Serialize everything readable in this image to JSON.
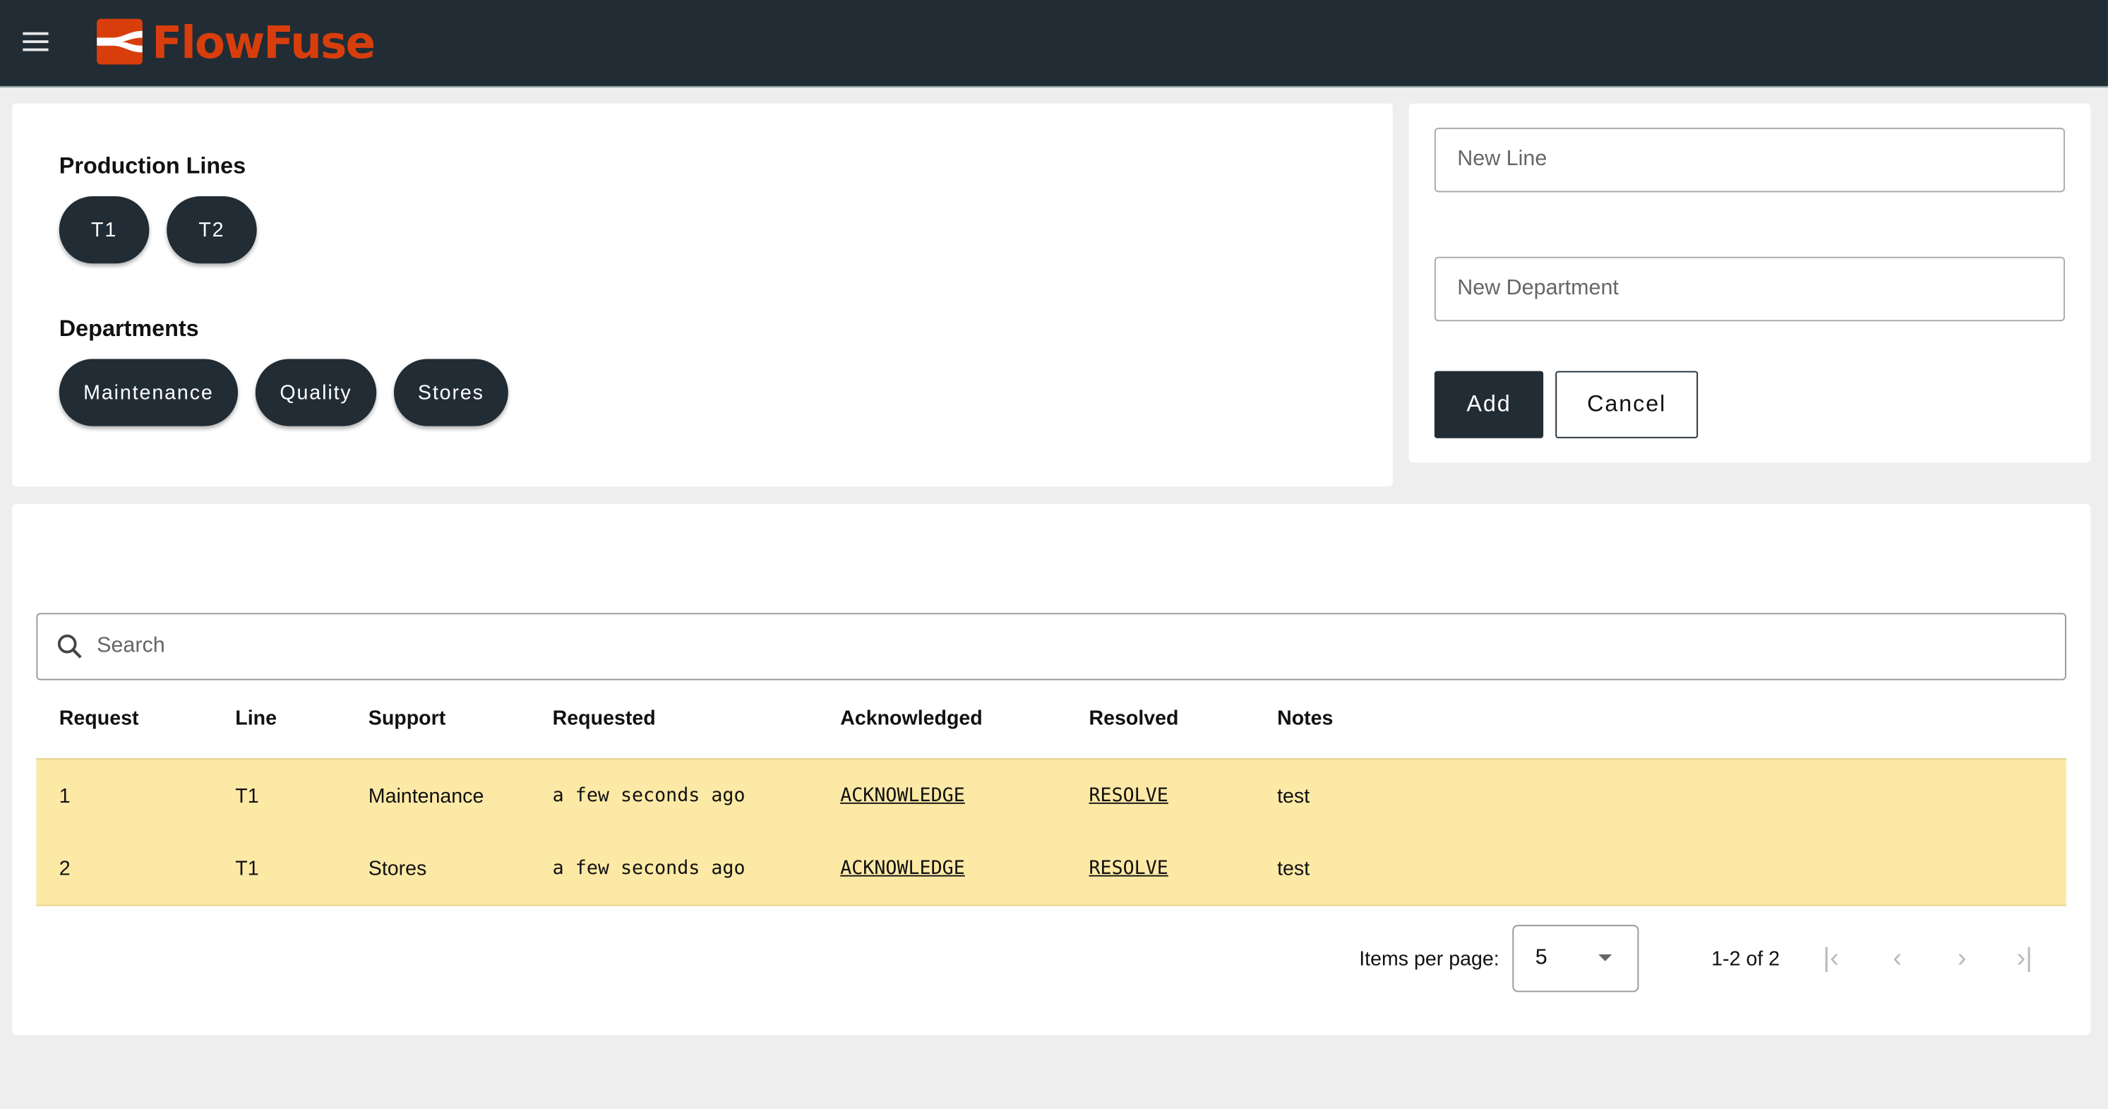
{
  "header": {
    "brand": "FlowFuse",
    "brand_color": "#d83e0c",
    "menu_icon": "hamburger-icon"
  },
  "lines": {
    "title": "Production Lines",
    "items": [
      "T1",
      "T2"
    ]
  },
  "departments": {
    "title": "Departments",
    "items": [
      "Maintenance",
      "Quality",
      "Stores"
    ]
  },
  "form": {
    "new_line_placeholder": "New Line",
    "new_department_placeholder": "New Department",
    "add_label": "Add",
    "cancel_label": "Cancel"
  },
  "search": {
    "placeholder": "Search"
  },
  "table": {
    "columns": [
      "Request",
      "Line",
      "Support",
      "Requested",
      "Acknowledged",
      "Resolved",
      "Notes"
    ],
    "rows": [
      {
        "request": "1",
        "line": "T1",
        "support": "Maintenance",
        "requested": "a few seconds ago",
        "acknowledged": "ACKNOWLEDGE",
        "resolved": "RESOLVE",
        "notes": "test"
      },
      {
        "request": "2",
        "line": "T1",
        "support": "Stores",
        "requested": "a few seconds ago",
        "acknowledged": "ACKNOWLEDGE",
        "resolved": "RESOLVE",
        "notes": "test"
      }
    ],
    "row_color": "#fde9a6"
  },
  "pagination": {
    "items_per_page_label": "Items per page:",
    "items_per_page": "5",
    "range": "1-2 of 2"
  }
}
